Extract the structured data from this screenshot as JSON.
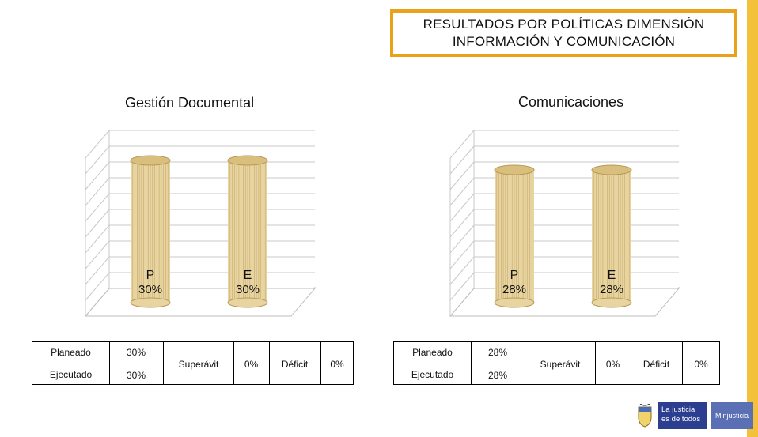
{
  "colors": {
    "accent_border": "#e9a21a",
    "stripe": "#f4c13a",
    "cylinder": "#e8d4a0",
    "cylinder_stroke": "#b89a55",
    "logo_blue": "#2b3e8f"
  },
  "header": {
    "line1": "RESULTADOS POR POLÍTICAS DIMENSIÓN",
    "line2": "INFORMACIÓN Y COMUNICACIÓN"
  },
  "chart_data": [
    {
      "type": "bar",
      "title": "Gestión Documental",
      "categories": [
        "P",
        "E"
      ],
      "values": [
        30,
        30
      ],
      "labels": [
        "30%",
        "30%"
      ],
      "ylim": [
        0,
        30
      ],
      "grid": true
    },
    {
      "type": "bar",
      "title": "Comunicaciones",
      "categories": [
        "P",
        "E"
      ],
      "values": [
        28,
        28
      ],
      "labels": [
        "28%",
        "28%"
      ],
      "ylim": [
        0,
        30
      ],
      "grid": true
    }
  ],
  "tables": [
    {
      "planeado_label": "Planeado",
      "planeado_value": "30%",
      "ejecutado_label": "Ejecutado",
      "ejecutado_value": "30%",
      "superavit_label": "Superávit",
      "superavit_value": "0%",
      "deficit_label": "Déficit",
      "deficit_value": "0%"
    },
    {
      "planeado_label": "Planeado",
      "planeado_value": "28%",
      "ejecutado_label": "Ejecutado",
      "ejecutado_value": "28%",
      "superavit_label": "Superávit",
      "superavit_value": "0%",
      "deficit_label": "Déficit",
      "deficit_value": "0%"
    }
  ],
  "logo": {
    "brand_line1": "La justicia",
    "brand_line2": "es de todos",
    "ministry": "Minjusticia",
    "icon": "colombia-shield-icon"
  }
}
